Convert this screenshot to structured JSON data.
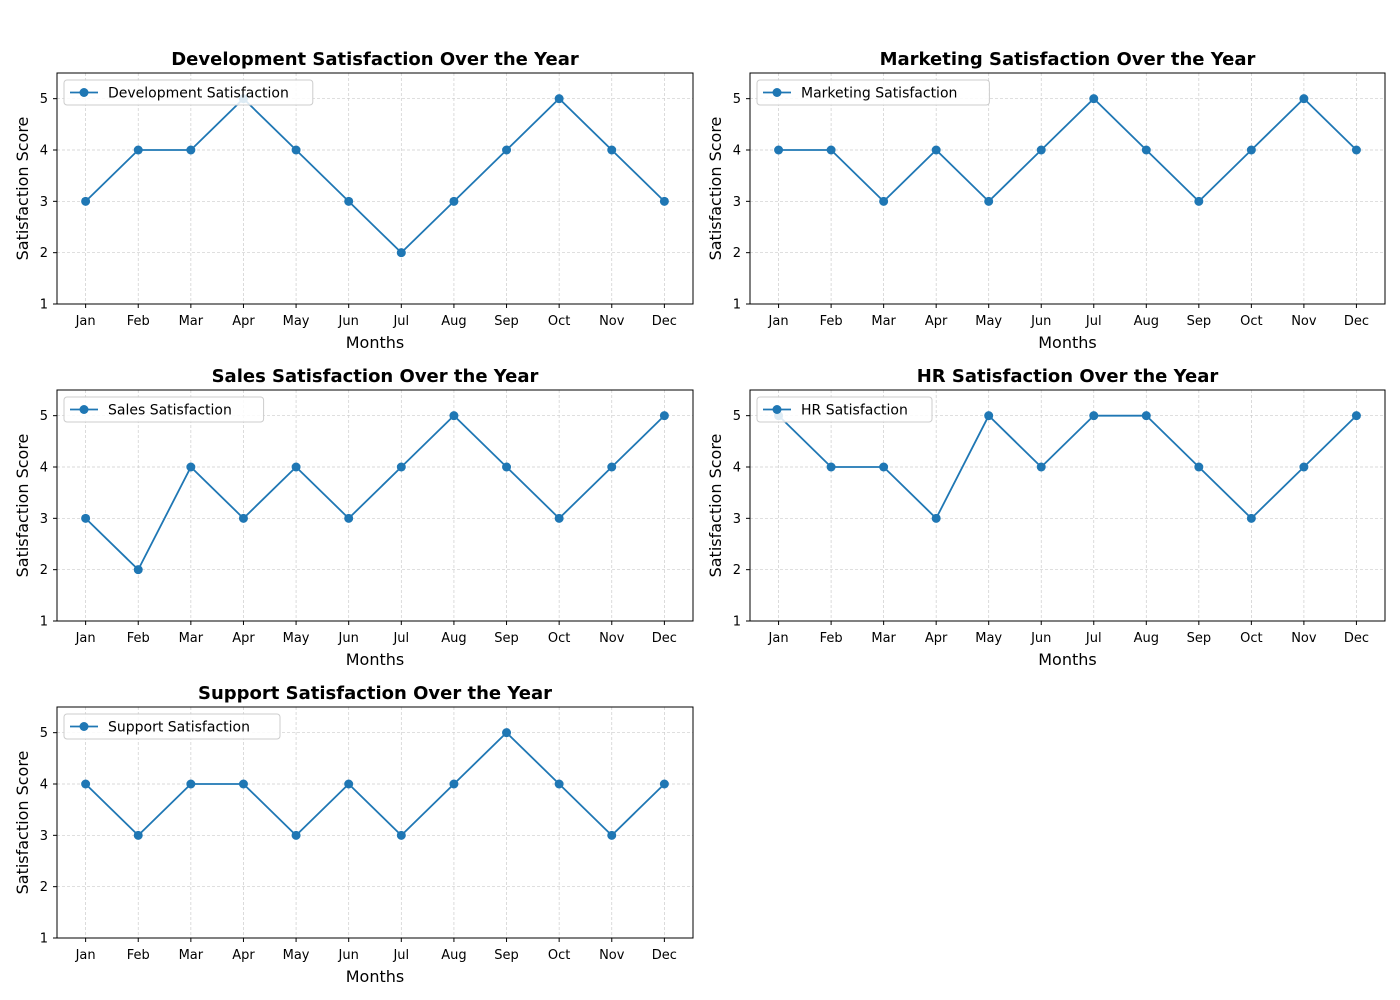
{
  "chart_data": [
    {
      "type": "line",
      "title": "Development Satisfaction Over the Year",
      "xlabel": "Months",
      "ylabel": "Satisfaction Score",
      "categories": [
        "Jan",
        "Feb",
        "Mar",
        "Apr",
        "May",
        "Jun",
        "Jul",
        "Aug",
        "Sep",
        "Oct",
        "Nov",
        "Dec"
      ],
      "yticks": [
        1,
        2,
        3,
        4,
        5
      ],
      "ylim": [
        1,
        5.5
      ],
      "grid": true,
      "legend_position": "upper-left",
      "series": [
        {
          "name": "Development Satisfaction",
          "values": [
            3,
            4,
            4,
            5,
            4,
            3,
            2,
            3,
            4,
            5,
            4,
            3
          ]
        }
      ]
    },
    {
      "type": "line",
      "title": "Marketing Satisfaction Over the Year",
      "xlabel": "Months",
      "ylabel": "Satisfaction Score",
      "categories": [
        "Jan",
        "Feb",
        "Mar",
        "Apr",
        "May",
        "Jun",
        "Jul",
        "Aug",
        "Sep",
        "Oct",
        "Nov",
        "Dec"
      ],
      "yticks": [
        1,
        2,
        3,
        4,
        5
      ],
      "ylim": [
        1,
        5.5
      ],
      "grid": true,
      "legend_position": "upper-left",
      "series": [
        {
          "name": "Marketing Satisfaction",
          "values": [
            4,
            4,
            3,
            4,
            3,
            4,
            5,
            4,
            3,
            4,
            5,
            4
          ]
        }
      ]
    },
    {
      "type": "line",
      "title": "Sales Satisfaction Over the Year",
      "xlabel": "Months",
      "ylabel": "Satisfaction Score",
      "categories": [
        "Jan",
        "Feb",
        "Mar",
        "Apr",
        "May",
        "Jun",
        "Jul",
        "Aug",
        "Sep",
        "Oct",
        "Nov",
        "Dec"
      ],
      "yticks": [
        1,
        2,
        3,
        4,
        5
      ],
      "ylim": [
        1,
        5.5
      ],
      "grid": true,
      "legend_position": "upper-left",
      "series": [
        {
          "name": "Sales Satisfaction",
          "values": [
            3,
            2,
            4,
            3,
            4,
            3,
            4,
            5,
            4,
            3,
            4,
            5
          ]
        }
      ]
    },
    {
      "type": "line",
      "title": "HR Satisfaction Over the Year",
      "xlabel": "Months",
      "ylabel": "Satisfaction Score",
      "categories": [
        "Jan",
        "Feb",
        "Mar",
        "Apr",
        "May",
        "Jun",
        "Jul",
        "Aug",
        "Sep",
        "Oct",
        "Nov",
        "Dec"
      ],
      "yticks": [
        1,
        2,
        3,
        4,
        5
      ],
      "ylim": [
        1,
        5.5
      ],
      "grid": true,
      "legend_position": "upper-left",
      "series": [
        {
          "name": "HR Satisfaction",
          "values": [
            5,
            4,
            4,
            3,
            5,
            4,
            5,
            5,
            4,
            3,
            4,
            5
          ]
        }
      ]
    },
    {
      "type": "line",
      "title": "Support Satisfaction Over the Year",
      "xlabel": "Months",
      "ylabel": "Satisfaction Score",
      "categories": [
        "Jan",
        "Feb",
        "Mar",
        "Apr",
        "May",
        "Jun",
        "Jul",
        "Aug",
        "Sep",
        "Oct",
        "Nov",
        "Dec"
      ],
      "yticks": [
        1,
        2,
        3,
        4,
        5
      ],
      "ylim": [
        1,
        5.5
      ],
      "grid": true,
      "legend_position": "upper-left",
      "series": [
        {
          "name": "Support Satisfaction",
          "values": [
            4,
            3,
            4,
            4,
            3,
            4,
            3,
            4,
            5,
            4,
            3,
            4
          ]
        }
      ]
    }
  ],
  "colors": {
    "series": "#1f77b4",
    "grid": "#cccccc",
    "axes": "#000000"
  }
}
